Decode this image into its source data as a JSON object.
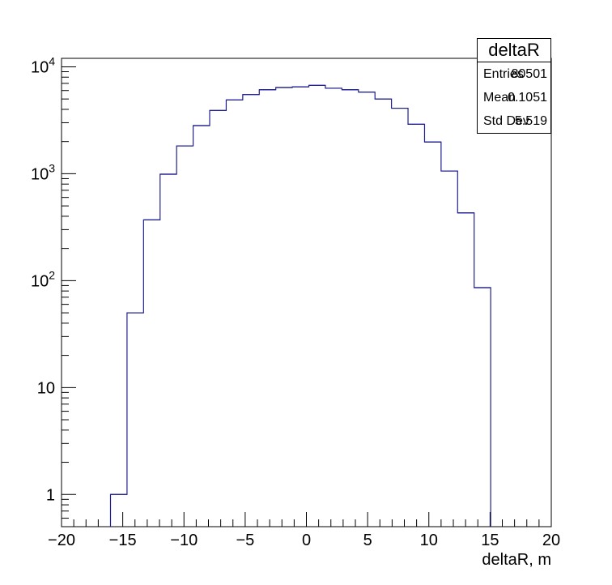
{
  "stats": {
    "title": "deltaR",
    "rows": [
      {
        "label": "Entries",
        "value": "80501"
      },
      {
        "label": "Mean",
        "value": "0.1051"
      },
      {
        "label": "Std Dev",
        "value": "5.519"
      }
    ]
  },
  "colors": {
    "histogram_line": "#1f1f8f",
    "frame": "#000000"
  },
  "chart_data": {
    "type": "histogram",
    "title": "",
    "xlabel": "deltaR, m",
    "ylabel": "",
    "log_y": true,
    "xlim": [
      -20,
      20
    ],
    "ylim": [
      0.5,
      12000
    ],
    "grid": false,
    "x_ticks": [
      -20,
      -15,
      -10,
      -5,
      0,
      5,
      10,
      15,
      20
    ],
    "x_tick_labels": [
      "−20",
      "−15",
      "−10",
      "−5",
      "0",
      "5",
      "10",
      "15",
      "20"
    ],
    "y_ticks": [
      {
        "value": 1,
        "label": "1"
      },
      {
        "value": 10,
        "label": "10"
      },
      {
        "value": 100,
        "base": "10",
        "exp": "2"
      },
      {
        "value": 1000,
        "base": "10",
        "exp": "3"
      },
      {
        "value": 10000,
        "base": "10",
        "exp": "4"
      }
    ],
    "bins": [
      {
        "low": -16.0,
        "high": -14.65,
        "count": 1
      },
      {
        "low": -14.65,
        "high": -13.3,
        "count": 50
      },
      {
        "low": -13.3,
        "high": -11.95,
        "count": 370
      },
      {
        "low": -11.95,
        "high": -10.6,
        "count": 990
      },
      {
        "low": -10.6,
        "high": -9.25,
        "count": 1820
      },
      {
        "low": -9.25,
        "high": -7.9,
        "count": 2820
      },
      {
        "low": -7.9,
        "high": -6.55,
        "count": 3900
      },
      {
        "low": -6.55,
        "high": -5.2,
        "count": 4900
      },
      {
        "low": -5.2,
        "high": -3.85,
        "count": 5500
      },
      {
        "low": -3.85,
        "high": -2.5,
        "count": 6100
      },
      {
        "low": -2.5,
        "high": -1.15,
        "count": 6400
      },
      {
        "low": -1.15,
        "high": 0.2,
        "count": 6500
      },
      {
        "low": 0.2,
        "high": 1.55,
        "count": 6700
      },
      {
        "low": 1.55,
        "high": 2.9,
        "count": 6300
      },
      {
        "low": 2.9,
        "high": 4.25,
        "count": 6100
      },
      {
        "low": 4.25,
        "high": 5.6,
        "count": 5800
      },
      {
        "low": 5.6,
        "high": 6.95,
        "count": 5000
      },
      {
        "low": 6.95,
        "high": 8.3,
        "count": 4100
      },
      {
        "low": 8.3,
        "high": 9.65,
        "count": 2900
      },
      {
        "low": 9.65,
        "high": 11.0,
        "count": 1980
      },
      {
        "low": 11.0,
        "high": 12.35,
        "count": 1060
      },
      {
        "low": 12.35,
        "high": 13.7,
        "count": 430
      },
      {
        "low": 13.7,
        "high": 15.05,
        "count": 86
      }
    ]
  }
}
